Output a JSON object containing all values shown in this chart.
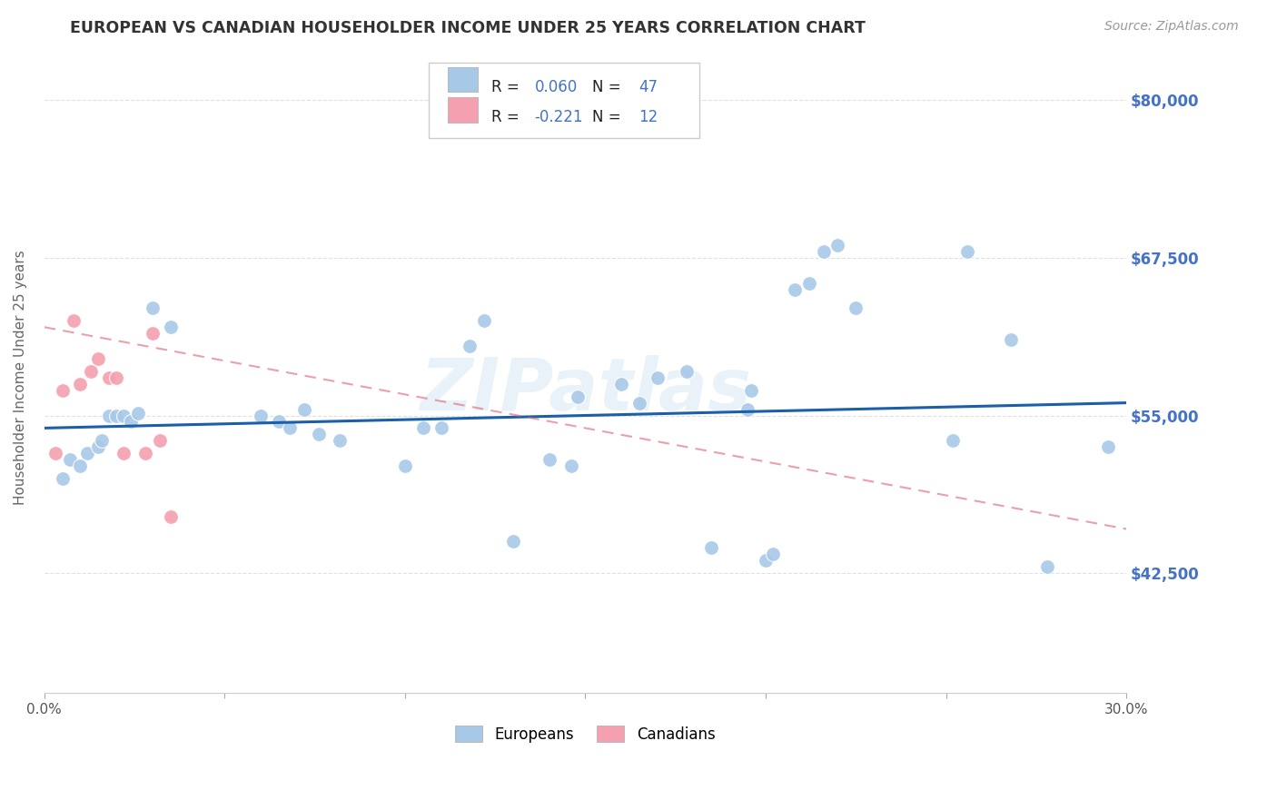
{
  "title": "EUROPEAN VS CANADIAN HOUSEHOLDER INCOME UNDER 25 YEARS CORRELATION CHART",
  "source": "Source: ZipAtlas.com",
  "ylabel": "Householder Income Under 25 years",
  "watermark": "ZIPatlas",
  "xlim": [
    0.0,
    0.3
  ],
  "ylim": [
    33000,
    83000
  ],
  "yticks": [
    42500,
    55000,
    67500,
    80000
  ],
  "ytick_labels": [
    "$42,500",
    "$55,000",
    "$67,500",
    "$80,000"
  ],
  "xticks": [
    0.0,
    0.05,
    0.1,
    0.15,
    0.2,
    0.25,
    0.3
  ],
  "xtick_labels": [
    "0.0%",
    "",
    "",
    "",
    "",
    "",
    "30.0%"
  ],
  "eu_color": "#a8c8e8",
  "ca_color": "#f4a0b0",
  "eu_line_color": "#1a5fa8",
  "ca_line_color": "#e06070",
  "eu_trendline": [
    0.0,
    0.3,
    54000,
    56000
  ],
  "ca_trendline": [
    0.0,
    0.3,
    62000,
    46000
  ],
  "europeans": [
    [
      0.005,
      50000
    ],
    [
      0.007,
      51500
    ],
    [
      0.01,
      51000
    ],
    [
      0.012,
      52000
    ],
    [
      0.015,
      52500
    ],
    [
      0.016,
      53000
    ],
    [
      0.018,
      55000
    ],
    [
      0.02,
      55000
    ],
    [
      0.022,
      55000
    ],
    [
      0.024,
      54500
    ],
    [
      0.026,
      55200
    ],
    [
      0.03,
      63500
    ],
    [
      0.035,
      62000
    ],
    [
      0.06,
      55000
    ],
    [
      0.065,
      54500
    ],
    [
      0.068,
      54000
    ],
    [
      0.072,
      55500
    ],
    [
      0.076,
      53500
    ],
    [
      0.082,
      53000
    ],
    [
      0.1,
      51000
    ],
    [
      0.105,
      54000
    ],
    [
      0.11,
      54000
    ],
    [
      0.118,
      60500
    ],
    [
      0.122,
      62500
    ],
    [
      0.13,
      45000
    ],
    [
      0.14,
      51500
    ],
    [
      0.146,
      51000
    ],
    [
      0.165,
      56000
    ],
    [
      0.17,
      58000
    ],
    [
      0.178,
      58500
    ],
    [
      0.185,
      44500
    ],
    [
      0.195,
      55500
    ],
    [
      0.196,
      57000
    ],
    [
      0.2,
      43500
    ],
    [
      0.202,
      44000
    ],
    [
      0.208,
      65000
    ],
    [
      0.212,
      65500
    ],
    [
      0.216,
      68000
    ],
    [
      0.22,
      68500
    ],
    [
      0.225,
      63500
    ],
    [
      0.148,
      56500
    ],
    [
      0.16,
      57500
    ],
    [
      0.252,
      53000
    ],
    [
      0.256,
      68000
    ],
    [
      0.268,
      61000
    ],
    [
      0.278,
      43000
    ],
    [
      0.295,
      52500
    ]
  ],
  "canadians": [
    [
      0.003,
      52000
    ],
    [
      0.005,
      57000
    ],
    [
      0.008,
      62500
    ],
    [
      0.01,
      57500
    ],
    [
      0.013,
      58500
    ],
    [
      0.015,
      59500
    ],
    [
      0.018,
      58000
    ],
    [
      0.02,
      58000
    ],
    [
      0.022,
      52000
    ],
    [
      0.028,
      52000
    ],
    [
      0.03,
      61500
    ],
    [
      0.032,
      53000
    ],
    [
      0.035,
      47000
    ]
  ],
  "background_color": "#ffffff",
  "grid_color": "#cccccc",
  "title_color": "#333333",
  "axis_label_color": "#666666",
  "tick_label_color_right": "#4472c4",
  "legend_text_color": "#4472c4",
  "legend_r_label_color": "#1a1a1a",
  "legend_n_label_color": "#1a1a1a"
}
